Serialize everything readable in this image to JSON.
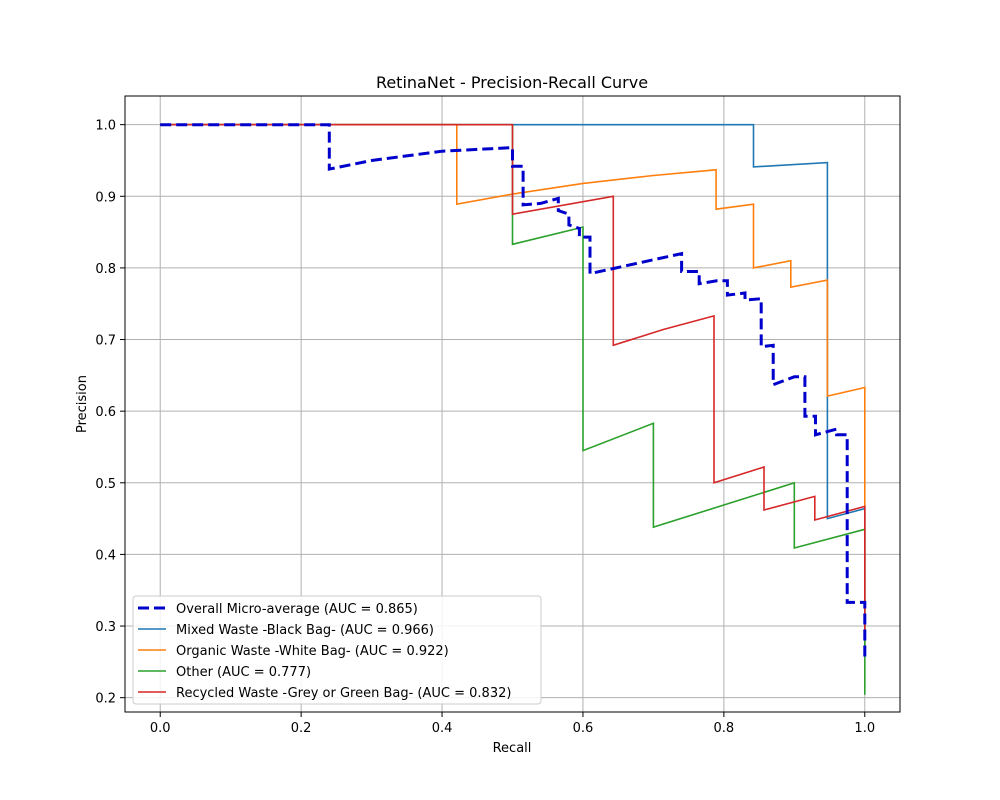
{
  "chart_data": {
    "type": "line",
    "title": "RetinaNet - Precision-Recall Curve",
    "xlabel": "Recall",
    "ylabel": "Precision",
    "xlim": [
      -0.05,
      1.05
    ],
    "ylim": [
      0.18,
      1.04
    ],
    "xticks": [
      0.0,
      0.2,
      0.4,
      0.6,
      0.8,
      1.0
    ],
    "xtick_labels": [
      "0.0",
      "0.2",
      "0.4",
      "0.6",
      "0.8",
      "1.0"
    ],
    "yticks": [
      0.2,
      0.3,
      0.4,
      0.5,
      0.6,
      0.7,
      0.8,
      0.9,
      1.0
    ],
    "ytick_labels": [
      "0.2",
      "0.3",
      "0.4",
      "0.5",
      "0.6",
      "0.7",
      "0.8",
      "0.9",
      "1.0"
    ],
    "grid": true,
    "legend_position": "lower-left",
    "series": [
      {
        "name": "Overall Micro-average (AUC = 0.865)",
        "color": "#0000cc",
        "style": "dashed",
        "points": [
          [
            0,
            1.0
          ],
          [
            0.24,
            1.0
          ],
          [
            0.24,
            0.938
          ],
          [
            0.3,
            0.95
          ],
          [
            0.4,
            0.963
          ],
          [
            0.5,
            0.968
          ],
          [
            0.5,
            0.942
          ],
          [
            0.515,
            0.942
          ],
          [
            0.515,
            0.888
          ],
          [
            0.54,
            0.89
          ],
          [
            0.565,
            0.897
          ],
          [
            0.565,
            0.88
          ],
          [
            0.58,
            0.875
          ],
          [
            0.58,
            0.86
          ],
          [
            0.595,
            0.855
          ],
          [
            0.595,
            0.843
          ],
          [
            0.61,
            0.843
          ],
          [
            0.61,
            0.792
          ],
          [
            0.74,
            0.82
          ],
          [
            0.74,
            0.795
          ],
          [
            0.765,
            0.795
          ],
          [
            0.765,
            0.778
          ],
          [
            0.79,
            0.782
          ],
          [
            0.805,
            0.782
          ],
          [
            0.805,
            0.762
          ],
          [
            0.83,
            0.765
          ],
          [
            0.83,
            0.755
          ],
          [
            0.853,
            0.757
          ],
          [
            0.853,
            0.69
          ],
          [
            0.87,
            0.692
          ],
          [
            0.87,
            0.637
          ],
          [
            0.9,
            0.648
          ],
          [
            0.915,
            0.648
          ],
          [
            0.915,
            0.593
          ],
          [
            0.93,
            0.593
          ],
          [
            0.93,
            0.567
          ],
          [
            0.96,
            0.575
          ],
          [
            0.96,
            0.567
          ],
          [
            0.975,
            0.567
          ],
          [
            0.975,
            0.333
          ],
          [
            0.99,
            0.333
          ],
          [
            1.0,
            0.333
          ],
          [
            1.0,
            0.255
          ]
        ]
      },
      {
        "name": "Mixed Waste -Black Bag- (AUC = 0.966)",
        "color": "#1f77b4",
        "style": "solid",
        "points": [
          [
            0,
            1.0
          ],
          [
            0.842,
            1.0
          ],
          [
            0.842,
            0.941
          ],
          [
            0.947,
            0.947
          ],
          [
            0.947,
            0.45
          ],
          [
            1.0,
            0.464
          ],
          [
            1.0,
            0.26
          ]
        ]
      },
      {
        "name": "Organic Waste -White Bag- (AUC = 0.922)",
        "color": "#ff7f0e",
        "style": "solid",
        "points": [
          [
            0,
            1.0
          ],
          [
            0.421,
            1.0
          ],
          [
            0.421,
            0.889
          ],
          [
            0.5,
            0.903
          ],
          [
            0.6,
            0.918
          ],
          [
            0.7,
            0.929
          ],
          [
            0.789,
            0.937
          ],
          [
            0.789,
            0.882
          ],
          [
            0.842,
            0.889
          ],
          [
            0.842,
            0.8
          ],
          [
            0.895,
            0.81
          ],
          [
            0.895,
            0.773
          ],
          [
            0.947,
            0.783
          ],
          [
            0.947,
            0.621
          ],
          [
            1.0,
            0.633
          ],
          [
            1.0,
            0.26
          ]
        ]
      },
      {
        "name": "Other (AUC = 0.777)",
        "color": "#2ca02c",
        "style": "solid",
        "points": [
          [
            0,
            1.0
          ],
          [
            0.5,
            1.0
          ],
          [
            0.5,
            0.833
          ],
          [
            0.6,
            0.857
          ],
          [
            0.6,
            0.545
          ],
          [
            0.7,
            0.583
          ],
          [
            0.7,
            0.438
          ],
          [
            0.9,
            0.5
          ],
          [
            0.9,
            0.409
          ],
          [
            1.0,
            0.435
          ],
          [
            1.0,
            0.204
          ]
        ]
      },
      {
        "name": "Recycled Waste -Grey or Green Bag- (AUC = 0.832)",
        "color": "#d62728",
        "style": "solid",
        "points": [
          [
            0,
            1.0
          ],
          [
            0.5,
            1.0
          ],
          [
            0.5,
            0.875
          ],
          [
            0.643,
            0.9
          ],
          [
            0.643,
            0.692
          ],
          [
            0.714,
            0.714
          ],
          [
            0.786,
            0.733
          ],
          [
            0.786,
            0.5
          ],
          [
            0.857,
            0.522
          ],
          [
            0.857,
            0.462
          ],
          [
            0.929,
            0.481
          ],
          [
            0.929,
            0.448
          ],
          [
            1.0,
            0.467
          ],
          [
            1.0,
            0.28
          ]
        ]
      }
    ]
  }
}
